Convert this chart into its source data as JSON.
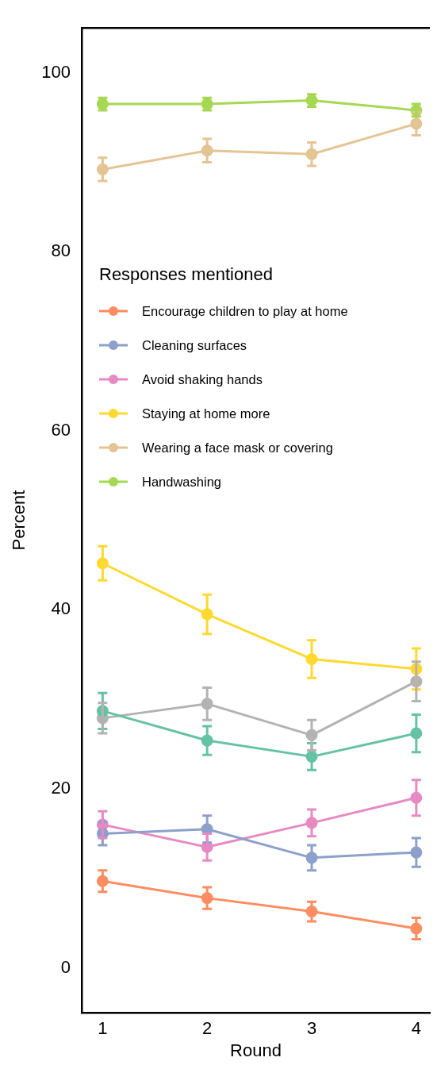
{
  "chart_data": {
    "type": "line",
    "xlabel": "Round",
    "ylabel": "Percent",
    "legend_title": "Responses mentioned",
    "x": [
      1,
      2,
      3,
      4
    ],
    "xlim": [
      0.8,
      4.13
    ],
    "xticks": [
      1,
      2,
      3,
      4
    ],
    "ylim": [
      -5,
      105
    ],
    "yticks": [
      0,
      20,
      40,
      60,
      80,
      100
    ],
    "grid": false,
    "legend": "top left",
    "marker": "circle",
    "line_style": "solid",
    "series": [
      {
        "name": "Encourage children to play at home",
        "color": "#fc8d62",
        "values": [
          9.7,
          7.8,
          6.3,
          4.4
        ],
        "errors": [
          1.2,
          1.2,
          1.1,
          1.2
        ]
      },
      {
        "name": "Cleaning surfaces",
        "color": "#8da0cb",
        "values": [
          15.0,
          15.5,
          12.3,
          12.9
        ],
        "errors": [
          1.3,
          1.5,
          1.4,
          1.6
        ]
      },
      {
        "name": "Avoid shaking hands",
        "color": "#e78ac3",
        "values": [
          16.0,
          13.5,
          16.2,
          19.0
        ],
        "errors": [
          1.5,
          1.5,
          1.5,
          2.0
        ]
      },
      {
        "name": "Staying at home more",
        "color": "#ffd92f",
        "values": [
          45.2,
          39.5,
          34.5,
          33.4
        ],
        "errors": [
          1.9,
          2.2,
          2.1,
          2.3
        ]
      },
      {
        "name": "Wearing a face mask or covering",
        "color": "#e5c494",
        "values": [
          89.2,
          91.3,
          90.9,
          94.3
        ],
        "errors": [
          1.3,
          1.3,
          1.3,
          1.3
        ]
      },
      {
        "name": "Handwashing",
        "color": "#a6d854",
        "values": [
          96.5,
          96.5,
          96.9,
          95.8
        ],
        "errors": [
          0.7,
          0.7,
          0.7,
          0.7
        ]
      },
      {
        "color": "#66c2a5",
        "values": [
          28.7,
          25.4,
          23.6,
          26.2
        ],
        "errors": [
          2.0,
          1.6,
          1.5,
          2.1
        ]
      },
      {
        "color": "#b3b3b3",
        "values": [
          27.9,
          29.5,
          26.0,
          32.0
        ],
        "errors": [
          1.7,
          1.8,
          1.7,
          2.2
        ]
      }
    ]
  }
}
